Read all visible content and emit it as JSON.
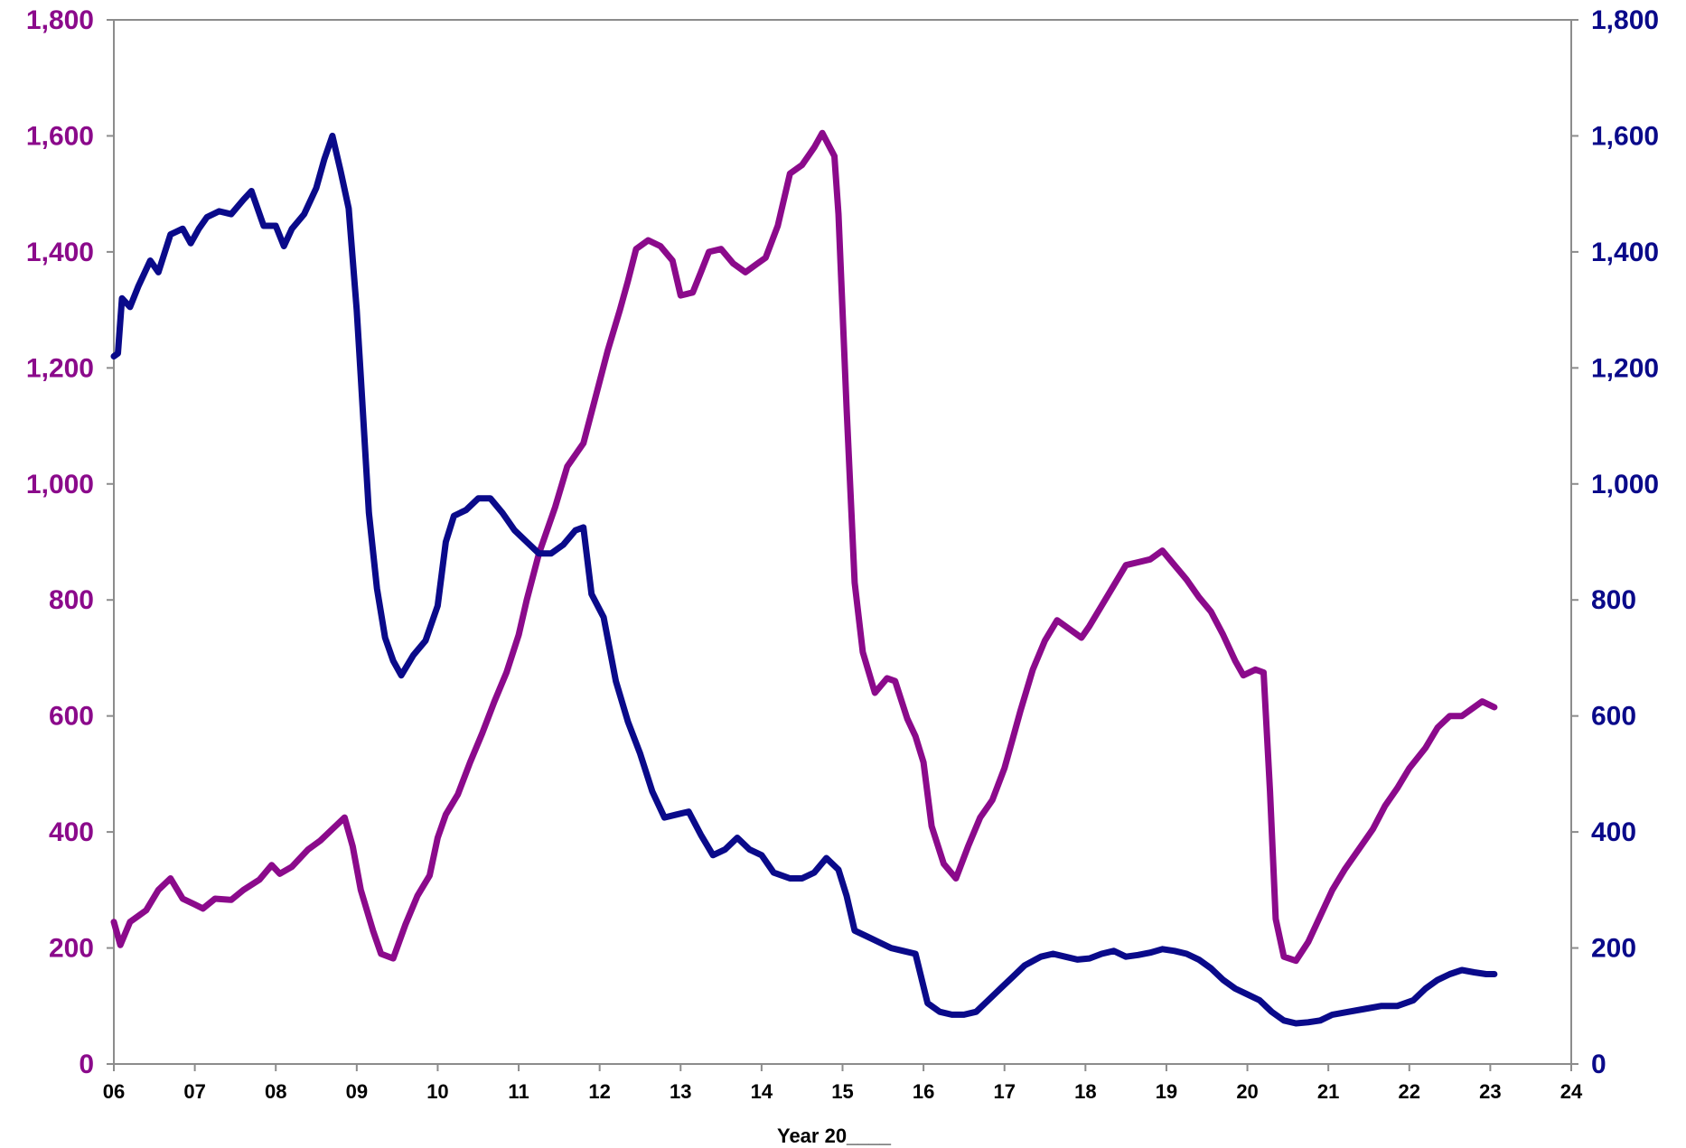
{
  "chart_data": {
    "type": "line",
    "title": "",
    "xlabel": "Year 20____",
    "ylabel_left": "",
    "ylabel_right": "",
    "x_ticks": [
      "06",
      "07",
      "08",
      "09",
      "10",
      "11",
      "12",
      "13",
      "14",
      "15",
      "16",
      "17",
      "18",
      "19",
      "20",
      "21",
      "22",
      "23",
      "24"
    ],
    "xlim": [
      6,
      24
    ],
    "ylim": [
      0,
      1800
    ],
    "y_ticks": [
      "0",
      "200",
      "400",
      "600",
      "800",
      "1,000",
      "1,200",
      "1,400",
      "1,600",
      "1,800"
    ],
    "grid": false,
    "legend": "none",
    "colors": {
      "left_axis": "#8b0a8b",
      "right_axis": "#0a0a8a",
      "axes": "#8c8c8c"
    },
    "series": [
      {
        "axis": "left",
        "color": "#8b0a8b",
        "points": [
          [
            6.0,
            245
          ],
          [
            6.08,
            205
          ],
          [
            6.2,
            245
          ],
          [
            6.4,
            265
          ],
          [
            6.55,
            300
          ],
          [
            6.7,
            320
          ],
          [
            6.85,
            285
          ],
          [
            7.0,
            275
          ],
          [
            7.1,
            268
          ],
          [
            7.25,
            285
          ],
          [
            7.45,
            283
          ],
          [
            7.6,
            300
          ],
          [
            7.8,
            318
          ],
          [
            7.95,
            343
          ],
          [
            8.05,
            328
          ],
          [
            8.2,
            340
          ],
          [
            8.4,
            370
          ],
          [
            8.55,
            385
          ],
          [
            8.7,
            405
          ],
          [
            8.85,
            425
          ],
          [
            8.95,
            375
          ],
          [
            9.05,
            300
          ],
          [
            9.2,
            230
          ],
          [
            9.3,
            190
          ],
          [
            9.45,
            182
          ],
          [
            9.6,
            240
          ],
          [
            9.75,
            290
          ],
          [
            9.9,
            325
          ],
          [
            10.0,
            390
          ],
          [
            10.1,
            430
          ],
          [
            10.25,
            465
          ],
          [
            10.4,
            520
          ],
          [
            10.55,
            570
          ],
          [
            10.7,
            625
          ],
          [
            10.85,
            675
          ],
          [
            11.0,
            740
          ],
          [
            11.1,
            800
          ],
          [
            11.25,
            880
          ],
          [
            11.45,
            960
          ],
          [
            11.6,
            1030
          ],
          [
            11.8,
            1070
          ],
          [
            11.95,
            1150
          ],
          [
            12.1,
            1230
          ],
          [
            12.25,
            1300
          ],
          [
            12.35,
            1350
          ],
          [
            12.45,
            1405
          ],
          [
            12.6,
            1420
          ],
          [
            12.75,
            1410
          ],
          [
            12.9,
            1385
          ],
          [
            13.0,
            1325
          ],
          [
            13.15,
            1330
          ],
          [
            13.25,
            1365
          ],
          [
            13.35,
            1400
          ],
          [
            13.5,
            1405
          ],
          [
            13.65,
            1380
          ],
          [
            13.8,
            1365
          ],
          [
            13.95,
            1380
          ],
          [
            14.05,
            1390
          ],
          [
            14.2,
            1445
          ],
          [
            14.35,
            1535
          ],
          [
            14.5,
            1550
          ],
          [
            14.65,
            1580
          ],
          [
            14.75,
            1605
          ],
          [
            14.9,
            1565
          ],
          [
            14.95,
            1465
          ],
          [
            15.05,
            1130
          ],
          [
            15.15,
            830
          ],
          [
            15.25,
            710
          ],
          [
            15.4,
            640
          ],
          [
            15.55,
            665
          ],
          [
            15.65,
            660
          ],
          [
            15.8,
            595
          ],
          [
            15.9,
            565
          ],
          [
            16.0,
            520
          ],
          [
            16.1,
            410
          ],
          [
            16.25,
            345
          ],
          [
            16.4,
            320
          ],
          [
            16.55,
            375
          ],
          [
            16.7,
            425
          ],
          [
            16.85,
            455
          ],
          [
            17.0,
            510
          ],
          [
            17.1,
            560
          ],
          [
            17.2,
            610
          ],
          [
            17.35,
            680
          ],
          [
            17.5,
            730
          ],
          [
            17.65,
            765
          ],
          [
            17.8,
            750
          ],
          [
            17.95,
            735
          ],
          [
            18.05,
            755
          ],
          [
            18.2,
            790
          ],
          [
            18.35,
            825
          ],
          [
            18.5,
            860
          ],
          [
            18.65,
            865
          ],
          [
            18.8,
            870
          ],
          [
            18.95,
            885
          ],
          [
            19.1,
            860
          ],
          [
            19.25,
            835
          ],
          [
            19.4,
            805
          ],
          [
            19.55,
            780
          ],
          [
            19.7,
            740
          ],
          [
            19.85,
            695
          ],
          [
            19.95,
            670
          ],
          [
            20.1,
            680
          ],
          [
            20.2,
            675
          ],
          [
            20.28,
            470
          ],
          [
            20.35,
            250
          ],
          [
            20.45,
            185
          ],
          [
            20.6,
            178
          ],
          [
            20.75,
            210
          ],
          [
            20.9,
            255
          ],
          [
            21.05,
            300
          ],
          [
            21.2,
            335
          ],
          [
            21.4,
            375
          ],
          [
            21.55,
            405
          ],
          [
            21.7,
            445
          ],
          [
            21.85,
            475
          ],
          [
            22.0,
            510
          ],
          [
            22.2,
            545
          ],
          [
            22.35,
            580
          ],
          [
            22.5,
            600
          ],
          [
            22.65,
            600
          ],
          [
            22.8,
            615
          ],
          [
            22.9,
            625
          ],
          [
            23.05,
            615
          ]
        ]
      },
      {
        "axis": "right",
        "color": "#0a0a8a",
        "points": [
          [
            6.0,
            1220
          ],
          [
            6.05,
            1225
          ],
          [
            6.1,
            1320
          ],
          [
            6.2,
            1305
          ],
          [
            6.3,
            1340
          ],
          [
            6.45,
            1385
          ],
          [
            6.55,
            1365
          ],
          [
            6.7,
            1430
          ],
          [
            6.85,
            1440
          ],
          [
            6.95,
            1415
          ],
          [
            7.05,
            1440
          ],
          [
            7.15,
            1460
          ],
          [
            7.3,
            1470
          ],
          [
            7.45,
            1465
          ],
          [
            7.6,
            1490
          ],
          [
            7.7,
            1505
          ],
          [
            7.85,
            1445
          ],
          [
            8.0,
            1445
          ],
          [
            8.1,
            1410
          ],
          [
            8.2,
            1440
          ],
          [
            8.35,
            1465
          ],
          [
            8.5,
            1510
          ],
          [
            8.6,
            1560
          ],
          [
            8.7,
            1600
          ],
          [
            8.8,
            1540
          ],
          [
            8.9,
            1475
          ],
          [
            9.0,
            1300
          ],
          [
            9.05,
            1185
          ],
          [
            9.15,
            950
          ],
          [
            9.25,
            820
          ],
          [
            9.35,
            735
          ],
          [
            9.45,
            695
          ],
          [
            9.55,
            670
          ],
          [
            9.7,
            705
          ],
          [
            9.85,
            730
          ],
          [
            10.0,
            790
          ],
          [
            10.1,
            900
          ],
          [
            10.2,
            945
          ],
          [
            10.35,
            955
          ],
          [
            10.5,
            975
          ],
          [
            10.65,
            975
          ],
          [
            10.8,
            950
          ],
          [
            10.95,
            920
          ],
          [
            11.1,
            900
          ],
          [
            11.25,
            880
          ],
          [
            11.4,
            880
          ],
          [
            11.55,
            895
          ],
          [
            11.7,
            920
          ],
          [
            11.8,
            925
          ],
          [
            11.9,
            810
          ],
          [
            12.05,
            770
          ],
          [
            12.2,
            660
          ],
          [
            12.35,
            590
          ],
          [
            12.5,
            535
          ],
          [
            12.65,
            470
          ],
          [
            12.8,
            425
          ],
          [
            12.95,
            430
          ],
          [
            13.1,
            435
          ],
          [
            13.25,
            395
          ],
          [
            13.4,
            360
          ],
          [
            13.55,
            370
          ],
          [
            13.7,
            390
          ],
          [
            13.85,
            370
          ],
          [
            14.0,
            360
          ],
          [
            14.15,
            330
          ],
          [
            14.35,
            320
          ],
          [
            14.5,
            320
          ],
          [
            14.65,
            330
          ],
          [
            14.8,
            355
          ],
          [
            14.95,
            335
          ],
          [
            15.05,
            290
          ],
          [
            15.15,
            230
          ],
          [
            15.3,
            220
          ],
          [
            15.45,
            210
          ],
          [
            15.6,
            200
          ],
          [
            15.75,
            195
          ],
          [
            15.9,
            190
          ],
          [
            16.05,
            105
          ],
          [
            16.2,
            90
          ],
          [
            16.35,
            85
          ],
          [
            16.5,
            85
          ],
          [
            16.65,
            90
          ],
          [
            16.8,
            110
          ],
          [
            16.95,
            130
          ],
          [
            17.1,
            150
          ],
          [
            17.25,
            170
          ],
          [
            17.45,
            185
          ],
          [
            17.6,
            190
          ],
          [
            17.75,
            185
          ],
          [
            17.9,
            180
          ],
          [
            18.05,
            182
          ],
          [
            18.2,
            190
          ],
          [
            18.35,
            195
          ],
          [
            18.5,
            185
          ],
          [
            18.65,
            188
          ],
          [
            18.8,
            192
          ],
          [
            18.95,
            198
          ],
          [
            19.1,
            195
          ],
          [
            19.25,
            190
          ],
          [
            19.4,
            180
          ],
          [
            19.55,
            165
          ],
          [
            19.7,
            145
          ],
          [
            19.85,
            130
          ],
          [
            20.0,
            120
          ],
          [
            20.15,
            110
          ],
          [
            20.3,
            90
          ],
          [
            20.45,
            75
          ],
          [
            20.6,
            70
          ],
          [
            20.75,
            72
          ],
          [
            20.9,
            75
          ],
          [
            21.05,
            85
          ],
          [
            21.25,
            90
          ],
          [
            21.45,
            95
          ],
          [
            21.65,
            100
          ],
          [
            21.85,
            100
          ],
          [
            22.05,
            110
          ],
          [
            22.2,
            130
          ],
          [
            22.35,
            145
          ],
          [
            22.5,
            155
          ],
          [
            22.65,
            162
          ],
          [
            22.8,
            158
          ],
          [
            22.95,
            155
          ],
          [
            23.05,
            155
          ]
        ]
      }
    ]
  }
}
